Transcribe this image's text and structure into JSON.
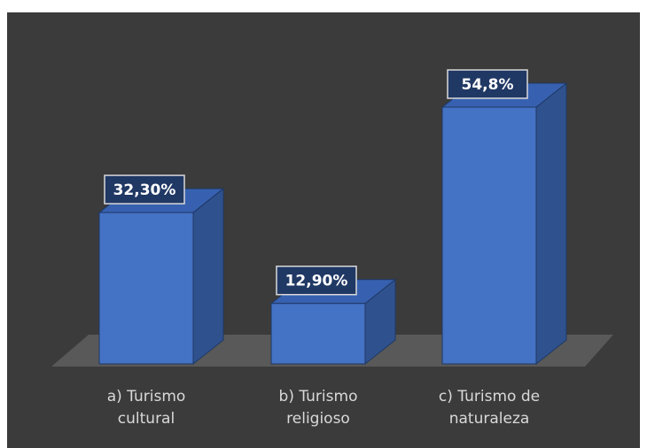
{
  "chart_data": {
    "type": "bar3d",
    "categories": [
      "a) Turismo cultural",
      "b) Turismo religioso",
      "c) Turismo de naturaleza"
    ],
    "values": [
      32.3,
      12.9,
      54.8
    ],
    "value_labels": [
      "32,30%",
      "12,90%",
      "54,8%"
    ],
    "color": "#4472c4"
  }
}
